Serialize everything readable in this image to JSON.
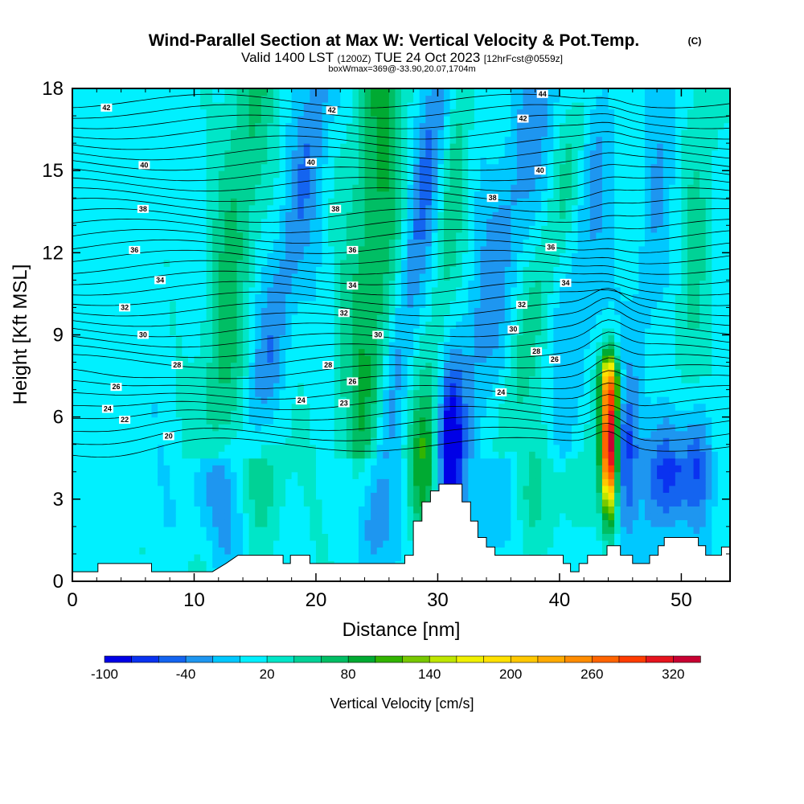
{
  "chart_data": {
    "type": "heatmap",
    "title": "Wind-Parallel Section at Max W: Vertical Velocity & Pot.Temp.",
    "title_suffix": "(C)",
    "subtitle_parts": [
      "Valid 1400 LST",
      "(1200Z)",
      "TUE 24 Oct 2023",
      "[12hrFcst@0559z]"
    ],
    "info_line": "boxWmax=369@-33.90,20.07,1704m",
    "xlabel": "Distance [nm]",
    "ylabel": "Height [Kft MSL]",
    "xlim": [
      0,
      54
    ],
    "ylim": [
      0,
      18
    ],
    "x_ticks": [
      "0",
      "10",
      "20",
      "30",
      "40",
      "50"
    ],
    "y_ticks": [
      "0",
      "3",
      "6",
      "9",
      "12",
      "15",
      "18"
    ],
    "colorbar": {
      "title": "Vertical Velocity [cm/s]",
      "labels": [
        "-100",
        "-40",
        "20",
        "80",
        "140",
        "200",
        "260",
        "320"
      ],
      "min": -100,
      "max": 350,
      "step": 20,
      "colors": [
        "#0000e6",
        "#0a32f0",
        "#1464f0",
        "#1e96f0",
        "#00c8ff",
        "#00f0ff",
        "#00e6c8",
        "#00d296",
        "#00be64",
        "#00aa32",
        "#32b400",
        "#78c800",
        "#bee600",
        "#f0f000",
        "#ffe100",
        "#ffc800",
        "#ffaa00",
        "#ff8c00",
        "#ff6400",
        "#ff3c00",
        "#e6141e",
        "#c80032"
      ]
    },
    "wmax_cm_s": 369,
    "theta_labels": [
      {
        "x": 2.8,
        "z": 17.3,
        "v": "42"
      },
      {
        "x": 21.3,
        "z": 17.2,
        "v": "42"
      },
      {
        "x": 38.6,
        "z": 17.8,
        "v": "44"
      },
      {
        "x": 37.0,
        "z": 16.9,
        "v": "42"
      },
      {
        "x": 5.9,
        "z": 15.2,
        "v": "40"
      },
      {
        "x": 19.6,
        "z": 15.3,
        "v": "40"
      },
      {
        "x": 38.4,
        "z": 15.0,
        "v": "40"
      },
      {
        "x": 5.8,
        "z": 13.6,
        "v": "38"
      },
      {
        "x": 21.6,
        "z": 13.6,
        "v": "38"
      },
      {
        "x": 34.5,
        "z": 14.0,
        "v": "38"
      },
      {
        "x": 5.1,
        "z": 12.1,
        "v": "36"
      },
      {
        "x": 23.0,
        "z": 12.1,
        "v": "36"
      },
      {
        "x": 39.3,
        "z": 12.2,
        "v": "36"
      },
      {
        "x": 7.2,
        "z": 11.0,
        "v": "34"
      },
      {
        "x": 23.0,
        "z": 10.8,
        "v": "34"
      },
      {
        "x": 40.5,
        "z": 10.9,
        "v": "34"
      },
      {
        "x": 4.3,
        "z": 10.0,
        "v": "32"
      },
      {
        "x": 22.3,
        "z": 9.8,
        "v": "32"
      },
      {
        "x": 36.9,
        "z": 10.1,
        "v": "32"
      },
      {
        "x": 5.8,
        "z": 9.0,
        "v": "30"
      },
      {
        "x": 25.1,
        "z": 9.0,
        "v": "30"
      },
      {
        "x": 36.2,
        "z": 9.2,
        "v": "30"
      },
      {
        "x": 8.6,
        "z": 7.9,
        "v": "28"
      },
      {
        "x": 21.0,
        "z": 7.9,
        "v": "28"
      },
      {
        "x": 38.1,
        "z": 8.4,
        "v": "28"
      },
      {
        "x": 3.6,
        "z": 7.1,
        "v": "26"
      },
      {
        "x": 23.0,
        "z": 7.3,
        "v": "26"
      },
      {
        "x": 39.6,
        "z": 8.1,
        "v": "26"
      },
      {
        "x": 2.9,
        "z": 6.3,
        "v": "24"
      },
      {
        "x": 18.8,
        "z": 6.6,
        "v": "24"
      },
      {
        "x": 35.2,
        "z": 6.9,
        "v": "24"
      },
      {
        "x": 4.3,
        "z": 5.9,
        "v": "22"
      },
      {
        "x": 22.3,
        "z": 6.5,
        "v": "23"
      },
      {
        "x": 7.9,
        "z": 5.3,
        "v": "20"
      }
    ],
    "terrain_kft": [
      [
        0,
        0.35
      ],
      [
        2.1,
        0.35
      ],
      [
        2.1,
        0.65
      ],
      [
        6.5,
        0.65
      ],
      [
        6.5,
        0.35
      ],
      [
        11.5,
        0.35
      ],
      [
        12.6,
        0.65
      ],
      [
        12.6,
        0.65
      ],
      [
        13.6,
        0.95
      ],
      [
        17.3,
        0.95
      ],
      [
        17.3,
        0.65
      ],
      [
        17.9,
        0.65
      ],
      [
        17.9,
        0.95
      ],
      [
        19.5,
        0.95
      ],
      [
        19.5,
        0.65
      ],
      [
        27.3,
        0.65
      ],
      [
        27.3,
        0.95
      ],
      [
        28.0,
        0.95
      ],
      [
        28.0,
        2.2
      ],
      [
        28.7,
        2.2
      ],
      [
        28.7,
        2.9
      ],
      [
        29.4,
        2.9
      ],
      [
        29.4,
        3.3
      ],
      [
        30.1,
        3.3
      ],
      [
        30.1,
        3.55
      ],
      [
        32.0,
        3.55
      ],
      [
        32.0,
        2.9
      ],
      [
        32.7,
        2.9
      ],
      [
        32.7,
        2.2
      ],
      [
        33.3,
        2.2
      ],
      [
        33.3,
        1.6
      ],
      [
        34.0,
        1.6
      ],
      [
        34.0,
        1.25
      ],
      [
        34.7,
        1.25
      ],
      [
        34.7,
        0.95
      ],
      [
        40.3,
        0.95
      ],
      [
        40.3,
        0.65
      ],
      [
        40.9,
        0.65
      ],
      [
        40.9,
        0.35
      ],
      [
        41.6,
        0.35
      ],
      [
        41.6,
        0.65
      ],
      [
        42.3,
        0.65
      ],
      [
        42.3,
        0.95
      ],
      [
        43.9,
        0.95
      ],
      [
        43.9,
        1.3
      ],
      [
        45.0,
        1.3
      ],
      [
        45.0,
        0.95
      ],
      [
        46.0,
        0.95
      ],
      [
        46.0,
        0.65
      ],
      [
        47.4,
        0.65
      ],
      [
        47.4,
        0.95
      ],
      [
        48.1,
        0.95
      ],
      [
        48.1,
        1.3
      ],
      [
        48.6,
        1.3
      ],
      [
        48.6,
        1.6
      ],
      [
        51.4,
        1.6
      ],
      [
        51.4,
        1.3
      ],
      [
        52.0,
        1.3
      ],
      [
        52.0,
        0.95
      ],
      [
        53.3,
        0.95
      ],
      [
        53.3,
        1.25
      ],
      [
        54,
        1.25
      ]
    ]
  }
}
